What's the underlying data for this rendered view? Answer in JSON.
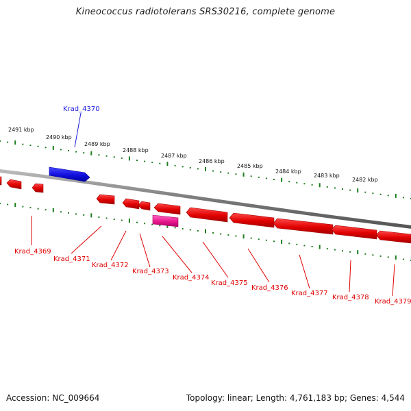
{
  "title": "Kineococcus radiotolerans SRS30216, complete genome",
  "footer": {
    "accession": "Accession: NC_009664",
    "summary": "Topology: linear; Length: 4,761,183 bp; Genes: 4,544"
  },
  "colors": {
    "plus_strand": "#1a1ad6",
    "minus_strand": "#e00000",
    "highlight": "#e8188c",
    "backbone": "#8a8a8a",
    "ruler": "#1e7d1e"
  },
  "scale_labels": [
    "2491 kbp",
    "2490 kbp",
    "2489 kbp",
    "2488 kbp",
    "2487 kbp",
    "2486 kbp",
    "2485 kbp",
    "2484 kbp",
    "2483 kbp",
    "2482 kbp"
  ],
  "gene_labels": {
    "krad_4370": "Krad_4370",
    "krad_4369": "Krad_4369",
    "krad_4371": "Krad_4371",
    "krad_4372": "Krad_4372",
    "krad_4373": "Krad_4373",
    "krad_4374": "Krad_4374",
    "krad_4375": "Krad_4375",
    "krad_4376": "Krad_4376",
    "krad_4377": "Krad_4377",
    "krad_4378": "Krad_4378",
    "krad_4379": "Krad_4379"
  }
}
